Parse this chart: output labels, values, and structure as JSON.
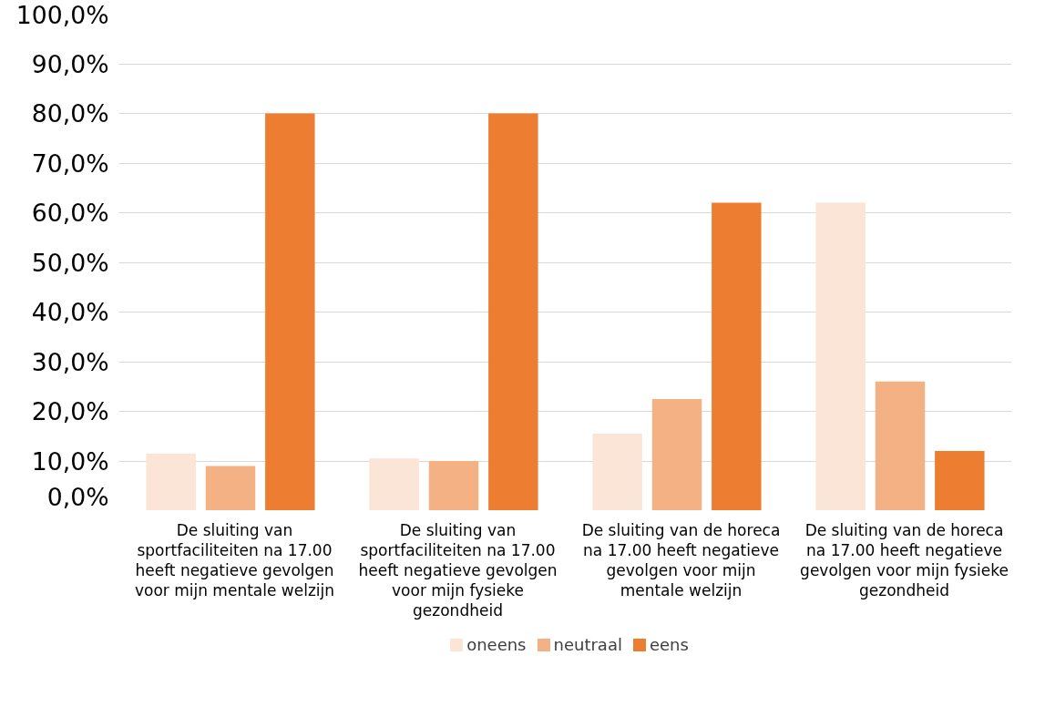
{
  "chart_data": {
    "type": "bar",
    "categories": [
      "De sluiting van sportfaciliteiten na 17.00 heeft negatieve gevolgen voor mijn mentale welzijn",
      "De sluiting van sportfaciliteiten na 17.00 heeft negatieve gevolgen voor mijn fysieke gezondheid",
      "De sluiting van de horeca na 17.00 heeft negatieve gevolgen voor mijn mentale welzijn",
      "De sluiting van de horeca na 17.00 heeft negatieve gevolgen voor mijn fysieke gezondheid"
    ],
    "series": [
      {
        "name": "oneens",
        "color": "#fbe5d6",
        "values": [
          11.5,
          10.5,
          15.5,
          62
        ]
      },
      {
        "name": "neutraal",
        "color": "#f4b183",
        "values": [
          9,
          10,
          22.5,
          26
        ]
      },
      {
        "name": "eens",
        "color": "#ed7d31",
        "values": [
          80,
          80,
          62,
          12
        ]
      }
    ],
    "ylim": [
      0,
      100
    ],
    "yticks": [
      {
        "value": 0,
        "label": "0,0%"
      },
      {
        "value": 10,
        "label": "10,0%"
      },
      {
        "value": 20,
        "label": "20,0%"
      },
      {
        "value": 30,
        "label": "30,0%"
      },
      {
        "value": 40,
        "label": "40,0%"
      },
      {
        "value": 50,
        "label": "50,0%"
      },
      {
        "value": 60,
        "label": "60,0%"
      },
      {
        "value": 70,
        "label": "70,0%"
      },
      {
        "value": 80,
        "label": "80,0%"
      },
      {
        "value": 90,
        "label": "90,0%"
      },
      {
        "value": 100,
        "label": "100,0%"
      }
    ],
    "grid": "y",
    "legend": "bottom"
  }
}
